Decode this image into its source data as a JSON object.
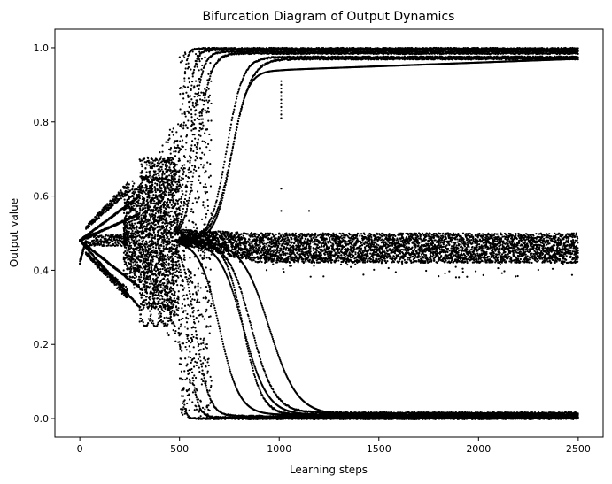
{
  "chart_data": {
    "type": "scatter",
    "title": "Bifurcation Diagram of Output Dynamics",
    "xlabel": "Learning steps",
    "ylabel": "Output value",
    "xlim": [
      -125,
      2625
    ],
    "ylim": [
      -0.05,
      1.05
    ],
    "x_ticks": [
      0,
      500,
      1000,
      1500,
      2000,
      2500
    ],
    "y_ticks": [
      0.0,
      0.2,
      0.4,
      0.6,
      0.8,
      1.0
    ],
    "x_tick_labels": [
      "0",
      "500",
      "1000",
      "1500",
      "2000",
      "2500"
    ],
    "y_tick_labels": [
      "0.0",
      "0.2",
      "0.4",
      "0.6",
      "0.8",
      "1.0"
    ],
    "grid": false,
    "legend": "none",
    "marker_color": "#000000",
    "regimes": [
      {
        "x_range": [
          0,
          30
        ],
        "y_range": [
          0.42,
          0.48
        ]
      },
      {
        "x_range": [
          30,
          240
        ],
        "y_range": [
          0.3,
          0.66
        ]
      },
      {
        "x_range": [
          240,
          500
        ],
        "y_range": [
          0.21,
          0.8
        ]
      },
      {
        "x_range": [
          500,
          650
        ],
        "y_range": [
          0.0,
          0.99
        ]
      },
      {
        "x_range": [
          650,
          2500
        ],
        "y_range": [
          0.0,
          0.99
        ]
      }
    ],
    "stable_branches_upper": [
      0.998,
      0.995,
      0.99,
      0.985,
      0.975,
      0.97
    ],
    "stable_branches_lower": [
      0.0,
      0.003,
      0.006,
      0.01,
      0.015
    ],
    "middle_band": {
      "x_range": [
        500,
        2500
      ],
      "y_range": [
        0.38,
        0.51
      ]
    },
    "isolated_points": [
      {
        "x": 1010,
        "y": 0.62
      },
      {
        "x": 1010,
        "y": 0.56
      },
      {
        "x": 1150,
        "y": 0.56
      },
      {
        "x": 1010,
        "y": 0.81
      },
      {
        "x": 1010,
        "y": 0.85
      }
    ]
  }
}
